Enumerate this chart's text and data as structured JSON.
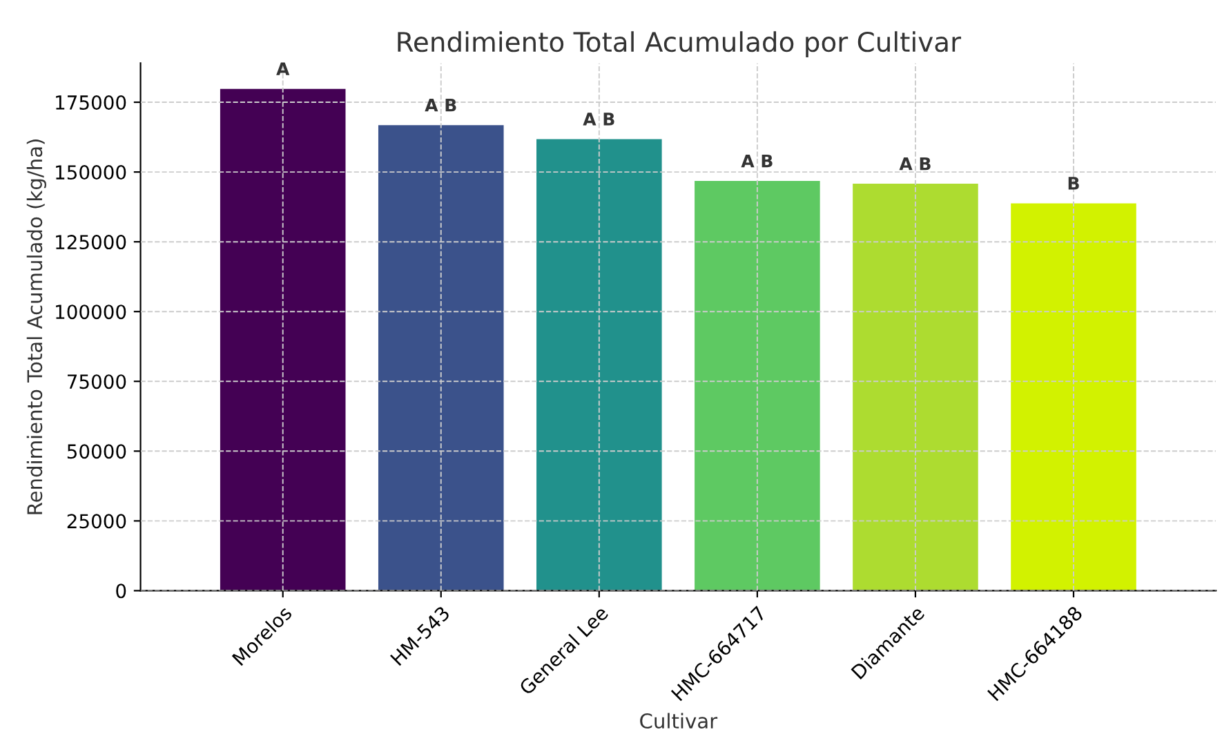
{
  "chart_data": {
    "type": "bar",
    "title": "Rendimiento Total Acumulado por Cultivar",
    "xlabel": "Cultivar",
    "ylabel": "Rendimiento Total Acumulado (kg/ha)",
    "categories": [
      "Morelos",
      "HM-543",
      "General Lee",
      "HMC-664717",
      "Diamante",
      "HMC-664188"
    ],
    "values": [
      180000,
      167000,
      162000,
      147000,
      146000,
      139000
    ],
    "colors": [
      "#440154",
      "#3b528b",
      "#21918c",
      "#5ec962",
      "#addc30",
      "#d2f200"
    ],
    "ylim": [
      0,
      189000
    ],
    "yticks": [
      0,
      25000,
      50000,
      75000,
      100000,
      125000,
      150000,
      175000
    ],
    "grid": true,
    "annotations": [
      {
        "text": "A",
        "x": "Morelos",
        "y": 180000
      },
      {
        "text": "A B",
        "x": "HM-543",
        "y": 167000
      },
      {
        "text": "A B",
        "x": "General Lee",
        "y": 162000
      },
      {
        "text": "A B",
        "x": "HMC-664717",
        "y": 147000
      },
      {
        "text": "A B",
        "x": "Diamante",
        "y": 146000
      },
      {
        "text": "B",
        "x": "HMC-664188",
        "y": 139000
      }
    ]
  }
}
